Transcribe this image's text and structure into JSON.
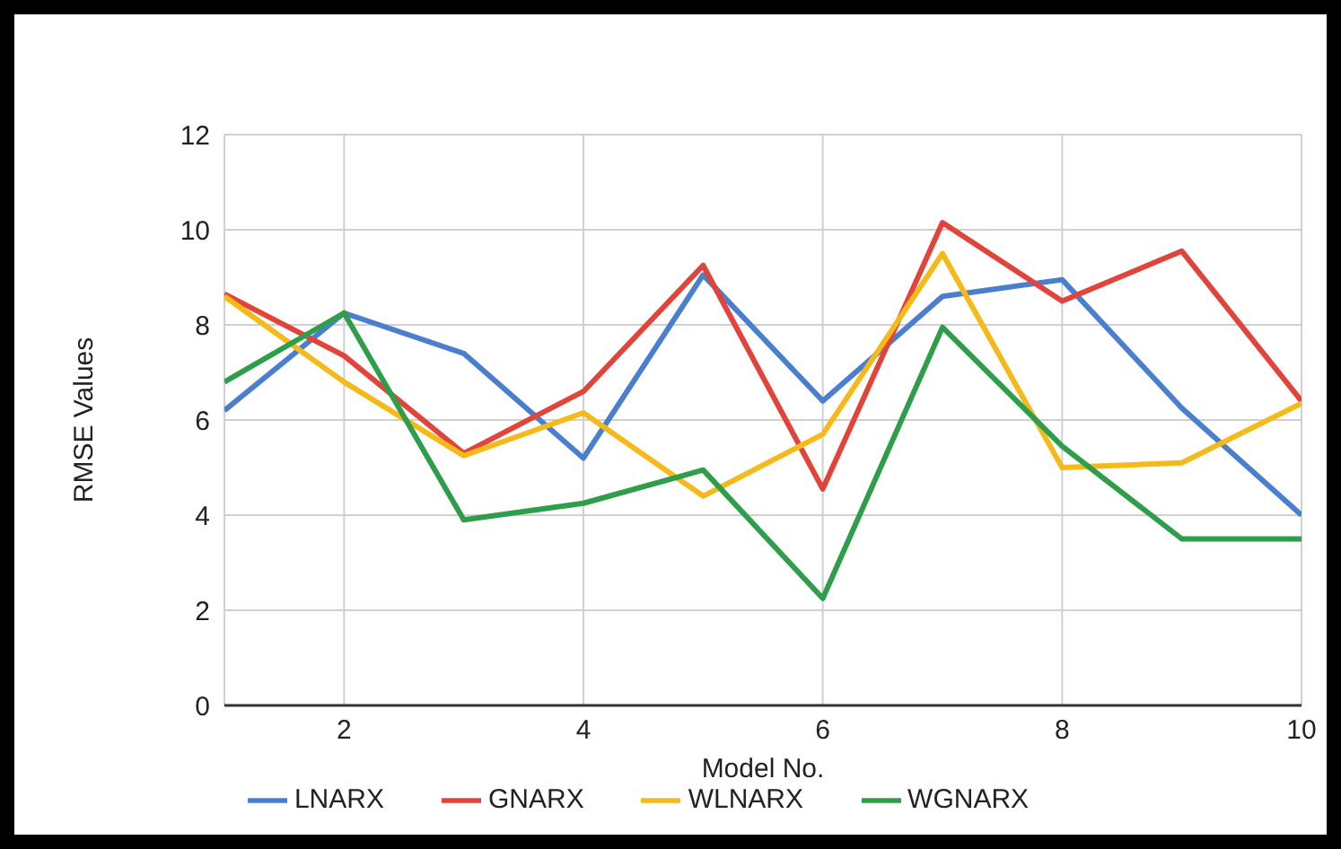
{
  "chart_data": {
    "type": "line",
    "xlabel": "Model No.",
    "ylabel": "RMSE Values",
    "x": [
      1,
      2,
      3,
      4,
      5,
      6,
      7,
      8,
      9,
      10
    ],
    "series": [
      {
        "name": "LNARX",
        "color": "#4a7fcf",
        "values": [
          6.2,
          8.25,
          7.4,
          5.2,
          9.05,
          6.4,
          8.6,
          8.95,
          6.25,
          4.0
        ]
      },
      {
        "name": "GNARX",
        "color": "#e0443a",
        "values": [
          8.65,
          7.35,
          5.3,
          6.6,
          9.25,
          4.55,
          10.15,
          8.5,
          9.55,
          6.4
        ]
      },
      {
        "name": "WLNARX",
        "color": "#f6b91a",
        "values": [
          8.6,
          6.8,
          5.25,
          6.15,
          4.4,
          5.7,
          9.5,
          5.0,
          5.1,
          6.35
        ]
      },
      {
        "name": "WGNARX",
        "color": "#2f9e4a",
        "values": [
          6.8,
          8.25,
          3.9,
          4.25,
          4.95,
          2.25,
          7.95,
          5.45,
          3.5,
          3.5
        ]
      }
    ],
    "xlim": [
      1,
      10
    ],
    "xticks": [
      2,
      4,
      6,
      8,
      10
    ],
    "ylim": [
      0,
      12
    ],
    "yticks": [
      0,
      2,
      4,
      6,
      8,
      10,
      12
    ],
    "grid": true,
    "legend": "bottom",
    "marker": "none",
    "line_style": "solid"
  }
}
